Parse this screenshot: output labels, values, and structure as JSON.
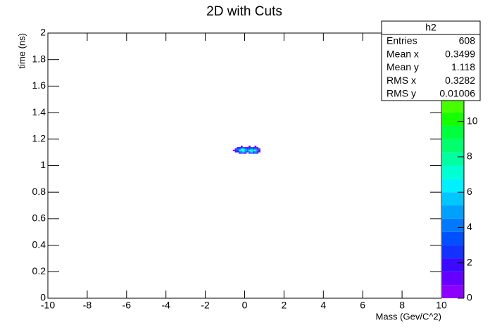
{
  "chart_data": {
    "type": "heatmap",
    "title": "2D with Cuts",
    "x_label": "Mass (Gev/C^2)",
    "y_label": "time (ns)",
    "xlim": [
      -10,
      10
    ],
    "xticks": [
      -10,
      -8,
      -6,
      -4,
      -2,
      0,
      2,
      4,
      6,
      8,
      10
    ],
    "ylim": [
      0,
      2
    ],
    "yticks": [
      0,
      0.2,
      0.4,
      0.6,
      0.8,
      1,
      1.2,
      1.4,
      1.6,
      1.8,
      2
    ],
    "zlim": [
      0,
      15
    ],
    "zticks": [
      0,
      2,
      4,
      6,
      8,
      10
    ],
    "xbins": [
      -0.6,
      -0.5,
      -0.4,
      -0.3,
      -0.2,
      -0.1,
      0,
      0.1,
      0.2,
      0.3,
      0.4,
      0.5,
      0.6,
      0.7,
      0.8
    ],
    "ybins": [
      1.09,
      1.1,
      1.11,
      1.12,
      1.13,
      1.14,
      1.15
    ],
    "z": [
      [
        null,
        null,
        null,
        2,
        3,
        1,
        2,
        null,
        2,
        3,
        2,
        3,
        2,
        null
      ],
      [
        null,
        1,
        2,
        4,
        5,
        6,
        4,
        3,
        5,
        6,
        4,
        5,
        3,
        1
      ],
      [
        1,
        2,
        3,
        6,
        8,
        7,
        5,
        4,
        6,
        9,
        7,
        6,
        4,
        2
      ],
      [
        null,
        1,
        3,
        4,
        6,
        7,
        5,
        3,
        4,
        5,
        4,
        5,
        3,
        1
      ],
      [
        null,
        null,
        1,
        2,
        2,
        3,
        2,
        1,
        2,
        3,
        2,
        2,
        1,
        null
      ],
      [
        null,
        null,
        null,
        null,
        1,
        null,
        null,
        null,
        1,
        null,
        null,
        1,
        null,
        null
      ]
    ],
    "palette": [
      "#8c00ff",
      "#6400ff",
      "#3c0aff",
      "#1432ff",
      "#0050ff",
      "#0078ff",
      "#00a0ff",
      "#00c8ff",
      "#00f0ff",
      "#00ffd2",
      "#00ffa0",
      "#00ff6e",
      "#00ff3c",
      "#14ff00",
      "#46ff00",
      "#78ff00",
      "#a0ff00",
      "#c8ff00",
      "#e6ff00",
      "#ffff00"
    ],
    "stats": {
      "title": "h2",
      "rows": [
        {
          "label": "Entries",
          "value": 608
        },
        {
          "label": "Mean x",
          "value": 0.3499
        },
        {
          "label": "Mean y",
          "value": 1.118
        },
        {
          "label": "RMS x",
          "value": 0.3282
        },
        {
          "label": "RMS y",
          "value": 0.01006
        }
      ]
    }
  }
}
